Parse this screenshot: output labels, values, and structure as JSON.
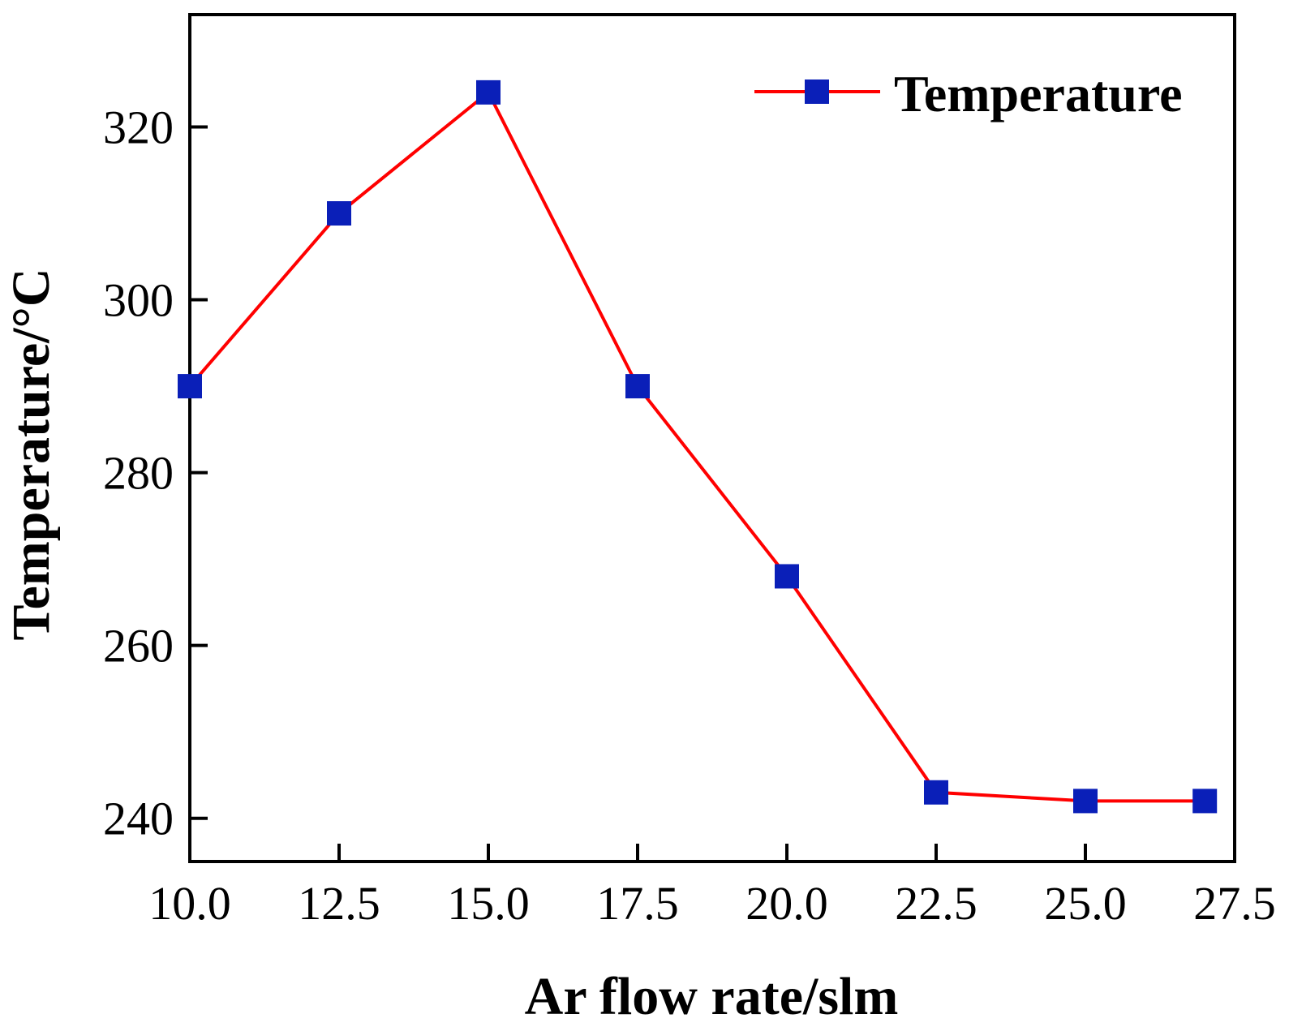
{
  "chart_data": {
    "type": "line",
    "title": "",
    "xlabel": "Ar flow rate/slm",
    "ylabel": "Temperature/°C",
    "xlim": [
      10.0,
      27.5
    ],
    "ylim": [
      235,
      333
    ],
    "x_ticks": [
      10.0,
      12.5,
      15.0,
      17.5,
      20.0,
      22.5,
      25.0,
      27.5
    ],
    "x_tick_labels": [
      "10.0",
      "12.5",
      "15.0",
      "17.5",
      "20.0",
      "22.5",
      "25.0",
      "27.5"
    ],
    "y_ticks": [
      240,
      260,
      280,
      300,
      320
    ],
    "y_tick_labels": [
      "240",
      "260",
      "280",
      "300",
      "320"
    ],
    "grid": false,
    "legend_position": "top-right",
    "series": [
      {
        "name": "Temperature",
        "line_color": "#ff0000",
        "marker_color": "#0a1fb8",
        "marker": "square",
        "x": [
          10.0,
          12.5,
          15.0,
          17.5,
          20.0,
          22.5,
          25.0,
          27.0
        ],
        "values": [
          290,
          310,
          324,
          290,
          268,
          243,
          242,
          242
        ]
      }
    ]
  }
}
